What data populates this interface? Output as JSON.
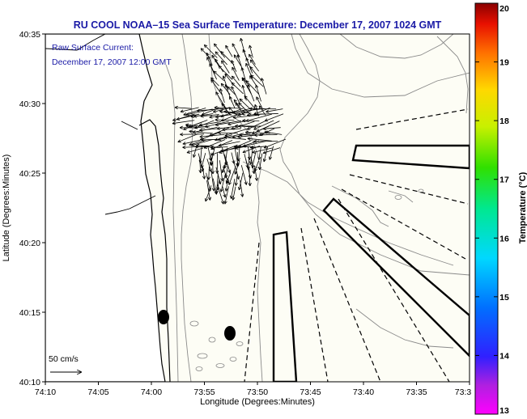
{
  "title": "RU COOL  NOAA–15  Sea Surface Temperature:  December 17, 2007 1024 GMT",
  "overlay": {
    "line1": "Raw Surface Current:",
    "line2": "December 17, 2007 12:00 GMT"
  },
  "axes": {
    "xlabel": "Longitude (Degrees:Minutes)",
    "ylabel": "Latitude (Degrees:Minutes)",
    "xticks": [
      "74:10",
      "74:05",
      "74:00",
      "73:55",
      "73:50",
      "73:45",
      "73:40",
      "73:35",
      "73:3"
    ],
    "yticks": [
      "40:35",
      "40:30",
      "40:25",
      "40:20",
      "40:15",
      "40:10"
    ]
  },
  "colorbar": {
    "label": "Temperature (°C)",
    "ticks": [
      "20",
      "19",
      "18",
      "17",
      "16",
      "15",
      "14",
      "13"
    ],
    "min": 13,
    "max": 20
  },
  "scale_label": "50 cm/s",
  "colors": {
    "text_blue": "#1a1aa6",
    "land": "#ffffff",
    "water": "#fdfdf5",
    "contour": "#8a8a8a",
    "coast": "#000000"
  }
}
